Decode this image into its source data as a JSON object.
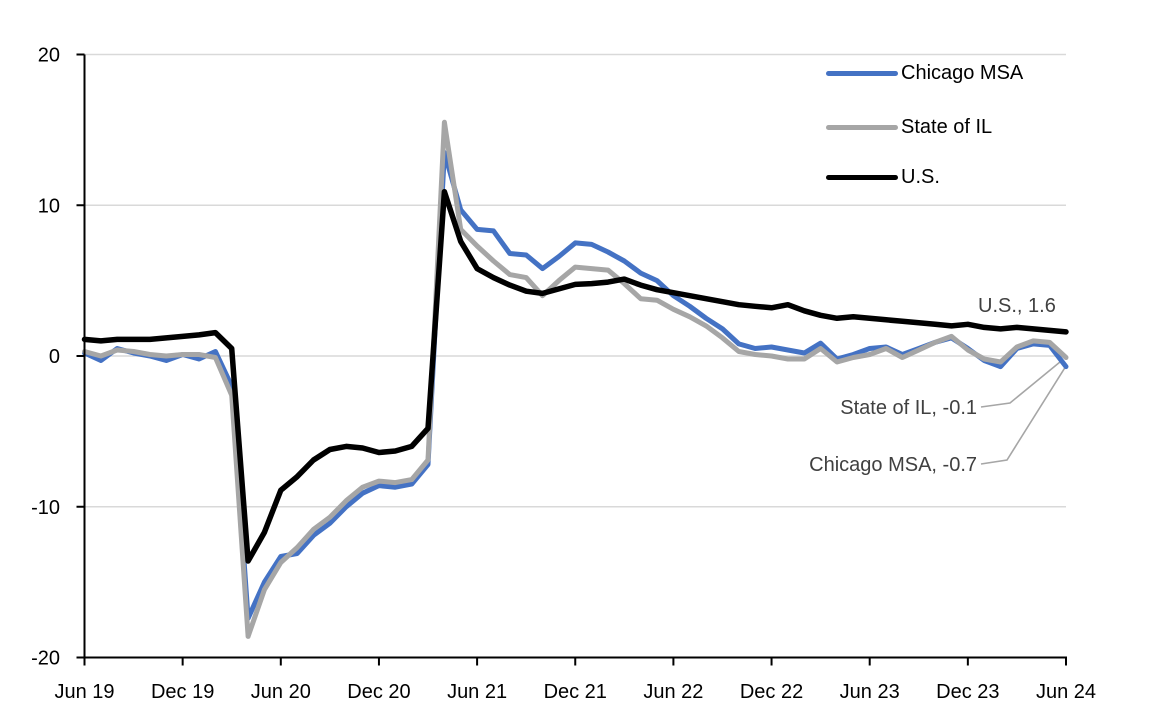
{
  "page": {
    "background": "#FFFFFF"
  },
  "colors": {
    "gridline": "#D9D9D9",
    "axis": "#000000",
    "tick_label": "#000000",
    "annotation_text": "#404040",
    "leader_line": "#A6A6A6"
  },
  "chart_data": {
    "type": "line",
    "title": "",
    "xlabel": "",
    "ylabel": "",
    "ylim": [
      -20,
      20
    ],
    "y_ticks": [
      20,
      10,
      0,
      -10,
      -20
    ],
    "grid": "horizontal",
    "legend_position": "top-right",
    "x_tick_labels": [
      "Jun 19",
      "Dec 19",
      "Jun 20",
      "Dec 20",
      "Jun 21",
      "Dec 21",
      "Jun 22",
      "Dec 22",
      "Jun 23",
      "Dec 23",
      "Jun 24"
    ],
    "x_tick_month_indices": [
      0,
      6,
      12,
      18,
      24,
      30,
      36,
      42,
      48,
      54,
      60
    ],
    "months": [
      "Jun-19",
      "Jul-19",
      "Aug-19",
      "Sep-19",
      "Oct-19",
      "Nov-19",
      "Dec-19",
      "Jan-20",
      "Feb-20",
      "Mar-20",
      "Apr-20",
      "May-20",
      "Jun-20",
      "Jul-20",
      "Aug-20",
      "Sep-20",
      "Oct-20",
      "Nov-20",
      "Dec-20",
      "Jan-21",
      "Feb-21",
      "Mar-21",
      "Apr-21",
      "May-21",
      "Jun-21",
      "Jul-21",
      "Aug-21",
      "Sep-21",
      "Oct-21",
      "Nov-21",
      "Dec-21",
      "Jan-22",
      "Feb-22",
      "Mar-22",
      "Apr-22",
      "May-22",
      "Jun-22",
      "Jul-22",
      "Aug-22",
      "Sep-22",
      "Oct-22",
      "Nov-22",
      "Dec-22",
      "Jan-23",
      "Feb-23",
      "Mar-23",
      "Apr-23",
      "May-23",
      "Jun-23",
      "Jul-23",
      "Aug-23",
      "Sep-23",
      "Oct-23",
      "Nov-23",
      "Dec-23",
      "Jan-24",
      "Feb-24",
      "Mar-24",
      "Apr-24",
      "May-24",
      "Jun-24"
    ],
    "series": [
      {
        "name": "Chicago MSA",
        "color": "#4472C4",
        "values": [
          0.2,
          -0.3,
          0.5,
          0.2,
          0,
          -0.3,
          0.1,
          -0.2,
          0.3,
          -2,
          -17.4,
          -15,
          -13.3,
          -13.1,
          -11.9,
          -11.1,
          -10,
          -9.1,
          -8.6,
          -8.7,
          -8.5,
          -7.2,
          13.5,
          9.7,
          8.4,
          8.3,
          6.8,
          6.7,
          5.8,
          6.6,
          7.5,
          7.4,
          6.9,
          6.3,
          5.5,
          5,
          4,
          3.3,
          2.5,
          1.8,
          0.8,
          0.5,
          0.6,
          0.4,
          0.2,
          0.85,
          -0.2,
          0.1,
          0.5,
          0.6,
          0.1,
          0.5,
          0.9,
          1.2,
          0.5,
          -0.3,
          -0.7,
          0.5,
          0.8,
          0.7,
          -0.7
        ]
      },
      {
        "name": "State of IL",
        "color": "#A6A6A6",
        "values": [
          0.3,
          0,
          0.4,
          0.3,
          0.1,
          0,
          0.1,
          0.1,
          -0.1,
          -2.6,
          -18.6,
          -15.5,
          -13.7,
          -12.7,
          -11.5,
          -10.7,
          -9.6,
          -8.7,
          -8.3,
          -8.4,
          -8.2,
          -6.9,
          15.5,
          8.4,
          7.3,
          6.3,
          5.4,
          5.2,
          4,
          5,
          5.9,
          5.8,
          5.7,
          4.8,
          3.8,
          3.7,
          3.1,
          2.6,
          2,
          1.2,
          0.3,
          0.1,
          0,
          -0.2,
          -0.2,
          0.5,
          -0.4,
          -0.1,
          0.1,
          0.5,
          -0.1,
          0.4,
          0.9,
          1.3,
          0.4,
          -0.2,
          -0.4,
          0.6,
          1,
          0.9,
          -0.1
        ]
      },
      {
        "name": "U.S.",
        "color": "#000000",
        "values": [
          1.1,
          1,
          1.1,
          1.1,
          1.1,
          1.2,
          1.3,
          1.4,
          1.55,
          0.5,
          -13.6,
          -11.7,
          -8.9,
          -8,
          -6.9,
          -6.2,
          -6,
          -6.1,
          -6.4,
          -6.3,
          -6,
          -4.8,
          10.9,
          7.6,
          5.8,
          5.2,
          4.7,
          4.3,
          4.15,
          4.45,
          4.75,
          4.8,
          4.9,
          5.1,
          4.7,
          4.4,
          4.2,
          4,
          3.8,
          3.6,
          3.4,
          3.3,
          3.2,
          3.4,
          3,
          2.7,
          2.5,
          2.6,
          2.5,
          2.4,
          2.3,
          2.2,
          2.1,
          2,
          2.1,
          1.9,
          1.8,
          1.9,
          1.8,
          1.7,
          1.6
        ]
      }
    ],
    "annotations": [
      {
        "label": "U.S., 1.6",
        "series": "U.S.",
        "value": 1.6
      },
      {
        "label": "State of IL, -0.1",
        "series": "State of IL",
        "value": -0.1
      },
      {
        "label": "Chicago MSA, -0.7",
        "series": "Chicago MSA",
        "value": -0.7
      }
    ]
  }
}
